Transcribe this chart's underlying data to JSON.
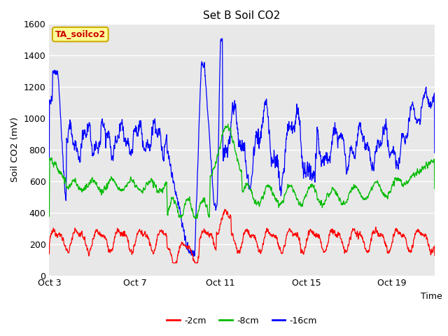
{
  "title": "Set B Soil CO2",
  "ylabel": "Soil CO2 (mV)",
  "xlabel": "Time",
  "label_tag": "TA_soilco2",
  "series_labels": [
    "-2cm",
    "-8cm",
    "-16cm"
  ],
  "series_colors": [
    "#ff0000",
    "#00bb00",
    "#0000ff"
  ],
  "ylim": [
    0,
    1600
  ],
  "xtick_labels": [
    "Oct 3",
    "Oct 7",
    "Oct 11",
    "Oct 15",
    "Oct 19"
  ],
  "xtick_positions": [
    0,
    4,
    8,
    12,
    16
  ],
  "xlim": [
    0,
    18
  ],
  "yticks": [
    0,
    200,
    400,
    600,
    800,
    1000,
    1200,
    1400,
    1600
  ],
  "plot_bg_color": "#e8e8e8",
  "fig_bg_color": "#ffffff",
  "grid_color": "#ffffff",
  "n_points": 2000,
  "line_width": 0.9,
  "tag_facecolor": "#ffff99",
  "tag_edgecolor": "#ccaa00",
  "tag_textcolor": "#cc0000"
}
